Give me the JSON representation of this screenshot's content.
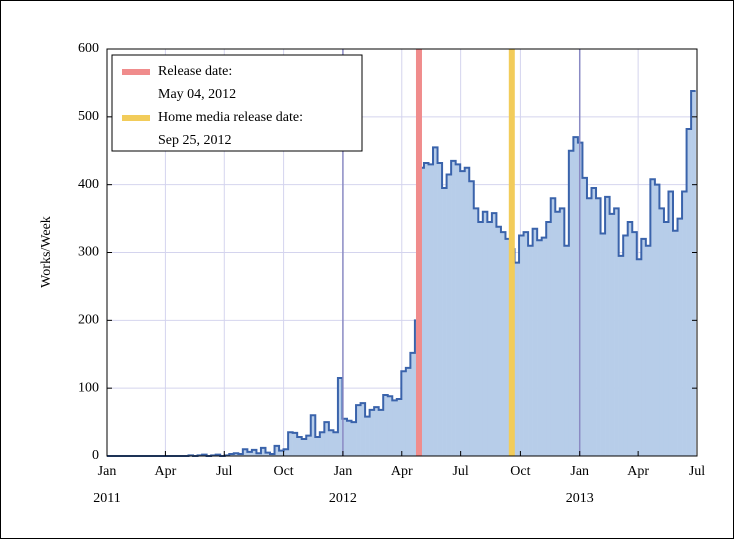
{
  "chart_data": {
    "type": "histogram",
    "y_label": "Works/Week",
    "xlim": [
      0,
      130.3
    ],
    "ylim": [
      0,
      600
    ],
    "yticks": [
      0,
      100,
      200,
      300,
      400,
      500,
      600
    ],
    "xticks": [
      {
        "value": 0,
        "label": "Jan"
      },
      {
        "value": 12.9,
        "label": "Apr"
      },
      {
        "value": 25.9,
        "label": "Jul"
      },
      {
        "value": 39.0,
        "label": "Oct"
      },
      {
        "value": 52.1,
        "label": "Jan"
      },
      {
        "value": 65.1,
        "label": "Apr"
      },
      {
        "value": 78.1,
        "label": "Jul"
      },
      {
        "value": 91.3,
        "label": "Oct"
      },
      {
        "value": 104.4,
        "label": "Jan"
      },
      {
        "value": 117.3,
        "label": "Apr"
      },
      {
        "value": 130.3,
        "label": "Jul"
      }
    ],
    "year_ticks": [
      {
        "value": 0,
        "label": "2011"
      },
      {
        "value": 52.1,
        "label": "2012"
      },
      {
        "value": 104.4,
        "label": "2013"
      }
    ],
    "grid": true,
    "fill_color": "#b7cde9",
    "line_color": "#3a63ab",
    "bins": [
      0,
      1,
      2,
      3,
      4,
      5,
      6,
      7,
      8,
      9,
      10,
      11,
      12,
      13,
      14,
      15,
      16,
      17,
      18,
      19,
      20,
      21,
      22,
      23,
      24,
      25,
      26,
      27,
      28,
      29,
      30,
      31,
      32,
      33,
      34,
      35,
      36,
      37,
      38,
      39,
      40,
      41,
      42,
      43,
      44,
      45,
      46,
      47,
      48,
      49,
      50,
      51,
      52,
      53,
      54,
      55,
      56,
      57,
      58,
      59,
      60,
      61,
      62,
      63,
      64,
      65,
      66,
      67,
      68,
      69,
      70,
      71,
      72,
      73,
      74,
      75,
      76,
      77,
      78,
      79,
      80,
      81,
      82,
      83,
      84,
      85,
      86,
      87,
      88,
      89,
      90,
      91,
      92,
      93,
      94,
      95,
      96,
      97,
      98,
      99,
      100,
      101,
      102,
      103,
      104,
      105,
      106,
      107,
      108,
      109,
      110,
      111,
      112,
      113,
      114,
      115,
      116,
      117,
      118,
      119,
      120,
      121,
      122,
      123,
      124,
      125,
      126,
      127,
      128,
      129,
      130
    ],
    "values": [
      0,
      0,
      0,
      0,
      0,
      0,
      0,
      0,
      0,
      0,
      0,
      0,
      0,
      0,
      0,
      0,
      0,
      0,
      1,
      0,
      1,
      2,
      0,
      1,
      2,
      0,
      1,
      3,
      4,
      3,
      10,
      6,
      9,
      4,
      12,
      5,
      3,
      15,
      8,
      10,
      35,
      34,
      28,
      25,
      30,
      60,
      28,
      35,
      50,
      38,
      35,
      115,
      55,
      52,
      50,
      75,
      78,
      58,
      68,
      72,
      68,
      90,
      88,
      82,
      84,
      125,
      130,
      152,
      200,
      425,
      432,
      430,
      455,
      432,
      395,
      415,
      435,
      430,
      420,
      425,
      405,
      365,
      345,
      360,
      345,
      358,
      338,
      330,
      320,
      305,
      285,
      325,
      330,
      310,
      335,
      318,
      322,
      345,
      380,
      360,
      365,
      310,
      450,
      470,
      462,
      410,
      380,
      395,
      380,
      328,
      382,
      357,
      365,
      295,
      325,
      345,
      330,
      290,
      320,
      310,
      408,
      400,
      365,
      345,
      390,
      332,
      350,
      390,
      482,
      538
    ],
    "markers": [
      {
        "x": 68.9,
        "color": "#f08c8c",
        "label_lines": [
          "Release date:",
          "May 04, 2012"
        ]
      },
      {
        "x": 89.4,
        "color": "#f2cc5a",
        "label_lines": [
          "Home media release date:",
          "Sep 25, 2012"
        ]
      }
    ],
    "legend": "upper left"
  }
}
